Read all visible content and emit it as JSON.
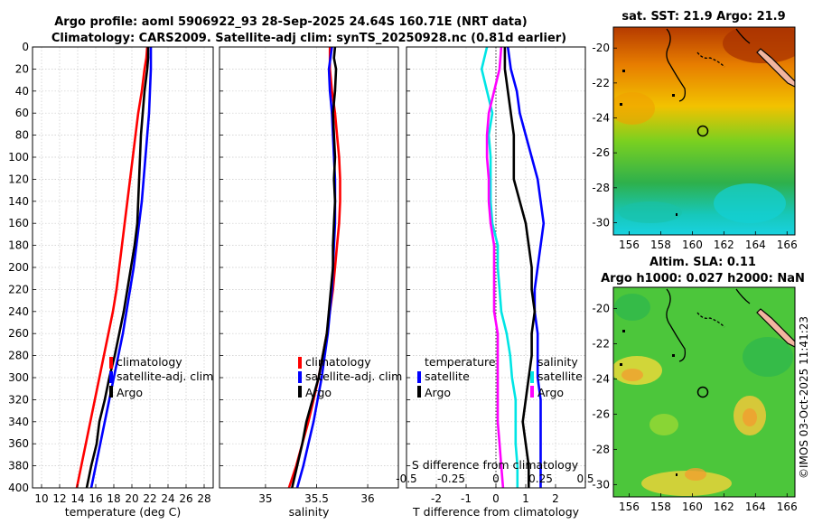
{
  "header": {
    "title_line1": "Argo profile: aoml 5906922_93 28-Sep-2025 24.64S 160.71E (NRT data)",
    "title_line2": "Climatology: CARS2009. Satellite-adj clim: synTS_20250928.nc (0.81d earlier)"
  },
  "colors": {
    "climatology": "#ff0000",
    "satellite": "#0000ff",
    "argo": "#000000",
    "s_satellite": "#00e5e5",
    "s_argo": "#ff00ff",
    "land": "#f2b5a0"
  },
  "chart_data": [
    {
      "type": "line",
      "name": "temperature-panel",
      "xlabel": "temperature (deg C)",
      "xlim": [
        9,
        29
      ],
      "ylim": [
        400,
        0
      ],
      "xticks": [
        "10",
        "12",
        "14",
        "16",
        "18",
        "20",
        "22",
        "24",
        "26",
        "28"
      ],
      "xtick_values": [
        10,
        12,
        14,
        16,
        18,
        20,
        22,
        24,
        26,
        28
      ],
      "yticks": [
        "0",
        "20",
        "40",
        "60",
        "80",
        "100",
        "120",
        "140",
        "160",
        "180",
        "200",
        "220",
        "240",
        "260",
        "280",
        "300",
        "320",
        "340",
        "360",
        "380",
        "400"
      ],
      "ytick_values": [
        0,
        20,
        40,
        60,
        80,
        100,
        120,
        140,
        160,
        180,
        200,
        220,
        240,
        260,
        280,
        300,
        320,
        340,
        360,
        380,
        400
      ],
      "legend": [
        "climatology",
        "satellite-adj. clim",
        "Argo"
      ],
      "series": [
        {
          "name": "climatology",
          "points": [
            [
              21.7,
              0
            ],
            [
              21.6,
              10
            ],
            [
              21.4,
              20
            ],
            [
              21.1,
              40
            ],
            [
              20.7,
              60
            ],
            [
              20.4,
              80
            ],
            [
              20.1,
              100
            ],
            [
              19.8,
              120
            ],
            [
              19.5,
              140
            ],
            [
              19.2,
              160
            ],
            [
              18.9,
              180
            ],
            [
              18.6,
              200
            ],
            [
              18.3,
              220
            ],
            [
              17.9,
              240
            ],
            [
              17.4,
              260
            ],
            [
              16.9,
              280
            ],
            [
              16.4,
              300
            ],
            [
              15.9,
              320
            ],
            [
              15.4,
              340
            ],
            [
              14.9,
              360
            ],
            [
              14.4,
              380
            ],
            [
              13.9,
              400
            ]
          ]
        },
        {
          "name": "satellite-adj. clim",
          "points": [
            [
              22.1,
              0
            ],
            [
              22.1,
              20
            ],
            [
              22.0,
              40
            ],
            [
              21.9,
              60
            ],
            [
              21.7,
              80
            ],
            [
              21.5,
              100
            ],
            [
              21.3,
              120
            ],
            [
              21.1,
              140
            ],
            [
              20.8,
              160
            ],
            [
              20.5,
              180
            ],
            [
              20.2,
              200
            ],
            [
              19.8,
              220
            ],
            [
              19.4,
              240
            ],
            [
              19.0,
              260
            ],
            [
              18.5,
              280
            ],
            [
              18.0,
              300
            ],
            [
              17.5,
              320
            ],
            [
              17.0,
              340
            ],
            [
              16.5,
              360
            ],
            [
              16.0,
              380
            ],
            [
              15.5,
              400
            ]
          ]
        },
        {
          "name": "Argo",
          "points": [
            [
              21.8,
              0
            ],
            [
              21.8,
              10
            ],
            [
              21.7,
              20
            ],
            [
              21.4,
              40
            ],
            [
              21.2,
              60
            ],
            [
              21.0,
              80
            ],
            [
              20.9,
              100
            ],
            [
              20.8,
              120
            ],
            [
              20.7,
              140
            ],
            [
              20.6,
              160
            ],
            [
              20.3,
              180
            ],
            [
              19.9,
              200
            ],
            [
              19.5,
              220
            ],
            [
              19.1,
              240
            ],
            [
              18.6,
              260
            ],
            [
              18.1,
              280
            ],
            [
              17.5,
              300
            ],
            [
              17.0,
              320
            ],
            [
              16.4,
              340
            ],
            [
              16.1,
              360
            ],
            [
              15.5,
              380
            ],
            [
              15.0,
              400
            ]
          ]
        }
      ]
    },
    {
      "type": "line",
      "name": "salinity-panel",
      "xlabel": "salinity",
      "xlim": [
        34.55,
        36.3
      ],
      "ylim": [
        400,
        0
      ],
      "xticks": [
        "35",
        "35.5",
        "36"
      ],
      "xtick_values": [
        35,
        35.5,
        36
      ],
      "legend": [
        "climatology",
        "satellite-adj. clim",
        "Argo"
      ],
      "series": [
        {
          "name": "climatology",
          "points": [
            [
              35.63,
              0
            ],
            [
              35.63,
              20
            ],
            [
              35.65,
              40
            ],
            [
              35.68,
              60
            ],
            [
              35.7,
              80
            ],
            [
              35.72,
              100
            ],
            [
              35.73,
              120
            ],
            [
              35.73,
              140
            ],
            [
              35.72,
              160
            ],
            [
              35.7,
              180
            ],
            [
              35.68,
              200
            ],
            [
              35.66,
              220
            ],
            [
              35.63,
              240
            ],
            [
              35.6,
              260
            ],
            [
              35.56,
              280
            ],
            [
              35.52,
              300
            ],
            [
              35.47,
              320
            ],
            [
              35.42,
              340
            ],
            [
              35.36,
              360
            ],
            [
              35.3,
              380
            ],
            [
              35.23,
              400
            ]
          ]
        },
        {
          "name": "satellite-adj. clim",
          "points": [
            [
              35.65,
              0
            ],
            [
              35.62,
              20
            ],
            [
              35.63,
              40
            ],
            [
              35.65,
              60
            ],
            [
              35.66,
              80
            ],
            [
              35.67,
              100
            ],
            [
              35.68,
              120
            ],
            [
              35.68,
              140
            ],
            [
              35.68,
              160
            ],
            [
              35.67,
              180
            ],
            [
              35.66,
              200
            ],
            [
              35.65,
              220
            ],
            [
              35.63,
              240
            ],
            [
              35.61,
              260
            ],
            [
              35.58,
              280
            ],
            [
              35.55,
              300
            ],
            [
              35.51,
              320
            ],
            [
              35.47,
              340
            ],
            [
              35.42,
              360
            ],
            [
              35.37,
              380
            ],
            [
              35.31,
              400
            ]
          ]
        },
        {
          "name": "Argo",
          "points": [
            [
              35.68,
              0
            ],
            [
              35.67,
              10
            ],
            [
              35.69,
              20
            ],
            [
              35.68,
              40
            ],
            [
              35.66,
              60
            ],
            [
              35.67,
              80
            ],
            [
              35.68,
              100
            ],
            [
              35.67,
              120
            ],
            [
              35.68,
              140
            ],
            [
              35.67,
              160
            ],
            [
              35.66,
              180
            ],
            [
              35.66,
              200
            ],
            [
              35.64,
              220
            ],
            [
              35.62,
              240
            ],
            [
              35.6,
              260
            ],
            [
              35.56,
              280
            ],
            [
              35.52,
              300
            ],
            [
              35.46,
              320
            ],
            [
              35.4,
              340
            ],
            [
              35.36,
              360
            ],
            [
              35.31,
              380
            ],
            [
              35.26,
              400
            ]
          ]
        }
      ]
    },
    {
      "type": "line",
      "name": "difference-panel",
      "xlabel": "T difference from climatology",
      "xlabel_top": "S difference from climatology",
      "xlim": [
        -3,
        3
      ],
      "ylim": [
        400,
        0
      ],
      "xticks": [
        "-2",
        "-1",
        "0",
        "1",
        "2"
      ],
      "xtick_values": [
        -2,
        -1,
        0,
        1,
        2
      ],
      "s_xticks": [
        "-0.5",
        "-0.25",
        "0",
        "0.25",
        "0.5"
      ],
      "s_xtick_values": [
        -0.5,
        -0.25,
        0,
        0.25,
        0.5
      ],
      "legend_temperature_title": "temperature",
      "legend_temperature": [
        "satellite",
        "Argo"
      ],
      "legend_salinity_title": "salinity",
      "legend_salinity": [
        "satellite",
        "Argo"
      ],
      "series": [
        {
          "name": "T satellite",
          "points": [
            [
              0.4,
              0
            ],
            [
              0.5,
              20
            ],
            [
              0.7,
              40
            ],
            [
              0.8,
              60
            ],
            [
              1.0,
              80
            ],
            [
              1.2,
              100
            ],
            [
              1.4,
              120
            ],
            [
              1.5,
              140
            ],
            [
              1.6,
              160
            ],
            [
              1.5,
              180
            ],
            [
              1.4,
              200
            ],
            [
              1.3,
              220
            ],
            [
              1.3,
              240
            ],
            [
              1.4,
              260
            ],
            [
              1.4,
              280
            ],
            [
              1.4,
              300
            ],
            [
              1.5,
              320
            ],
            [
              1.5,
              340
            ],
            [
              1.5,
              360
            ],
            [
              1.5,
              380
            ],
            [
              1.5,
              400
            ]
          ]
        },
        {
          "name": "T Argo",
          "points": [
            [
              0.3,
              0
            ],
            [
              0.3,
              20
            ],
            [
              0.4,
              40
            ],
            [
              0.5,
              60
            ],
            [
              0.6,
              80
            ],
            [
              0.6,
              100
            ],
            [
              0.6,
              120
            ],
            [
              0.8,
              140
            ],
            [
              1.0,
              160
            ],
            [
              1.1,
              180
            ],
            [
              1.2,
              200
            ],
            [
              1.2,
              220
            ],
            [
              1.3,
              240
            ],
            [
              1.2,
              260
            ],
            [
              1.2,
              280
            ],
            [
              1.1,
              300
            ],
            [
              1.0,
              320
            ],
            [
              0.9,
              340
            ],
            [
              1.0,
              360
            ],
            [
              1.1,
              380
            ],
            [
              1.1,
              400
            ]
          ]
        },
        {
          "name": "S satellite",
          "points": [
            [
              -0.05,
              0
            ],
            [
              -0.08,
              20
            ],
            [
              -0.05,
              40
            ],
            [
              -0.02,
              60
            ],
            [
              -0.04,
              80
            ],
            [
              -0.03,
              100
            ],
            [
              -0.03,
              120
            ],
            [
              -0.03,
              140
            ],
            [
              -0.02,
              160
            ],
            [
              0.01,
              180
            ],
            [
              0.01,
              200
            ],
            [
              0.02,
              220
            ],
            [
              0.03,
              240
            ],
            [
              0.06,
              260
            ],
            [
              0.08,
              280
            ],
            [
              0.09,
              300
            ],
            [
              0.11,
              320
            ],
            [
              0.11,
              340
            ],
            [
              0.11,
              360
            ],
            [
              0.12,
              380
            ],
            [
              0.12,
              400
            ]
          ]
        },
        {
          "name": "S Argo",
          "points": [
            [
              0.03,
              0
            ],
            [
              0.02,
              20
            ],
            [
              -0.01,
              40
            ],
            [
              -0.04,
              60
            ],
            [
              -0.05,
              80
            ],
            [
              -0.05,
              100
            ],
            [
              -0.04,
              120
            ],
            [
              -0.04,
              140
            ],
            [
              -0.03,
              160
            ],
            [
              -0.01,
              180
            ],
            [
              -0.01,
              200
            ],
            [
              -0.01,
              220
            ],
            [
              -0.01,
              240
            ],
            [
              0.01,
              260
            ],
            [
              0.01,
              280
            ],
            [
              0.01,
              300
            ],
            [
              0.01,
              320
            ],
            [
              0.01,
              340
            ],
            [
              0.02,
              360
            ],
            [
              0.03,
              380
            ],
            [
              0.04,
              400
            ]
          ]
        }
      ]
    },
    {
      "type": "heatmap",
      "name": "sst-map",
      "title": "sat. SST: 21.9 Argo: 21.9",
      "xticks": [
        "156",
        "158",
        "160",
        "162",
        "164",
        "166"
      ],
      "xtick_values": [
        156,
        158,
        160,
        162,
        164,
        166
      ],
      "yticks": [
        "-20",
        "-22",
        "-24",
        "-26",
        "-28",
        "-30"
      ],
      "ytick_values": [
        -20,
        -22,
        -24,
        -26,
        -28,
        -30
      ],
      "xlim": [
        155,
        166.5
      ],
      "ylim": [
        -30.7,
        -18.8
      ],
      "argo_position": [
        160.71,
        -24.64
      ]
    },
    {
      "type": "heatmap",
      "name": "sla-map",
      "title_line1": "Altim. SLA: 0.11",
      "title_line2": "Argo h1000: 0.027 h2000: NaN",
      "xticks": [
        "156",
        "158",
        "160",
        "162",
        "164",
        "166"
      ],
      "xtick_values": [
        156,
        158,
        160,
        162,
        164,
        166
      ],
      "yticks": [
        "-20",
        "-22",
        "-24",
        "-26",
        "-28",
        "-30"
      ],
      "ytick_values": [
        -20,
        -22,
        -24,
        -26,
        -28,
        -30
      ],
      "xlim": [
        155,
        166.5
      ],
      "ylim": [
        -30.7,
        -18.8
      ],
      "argo_position": [
        160.71,
        -24.64
      ]
    }
  ],
  "credit": "©IMOS 03-Oct-2025 11:41:23"
}
